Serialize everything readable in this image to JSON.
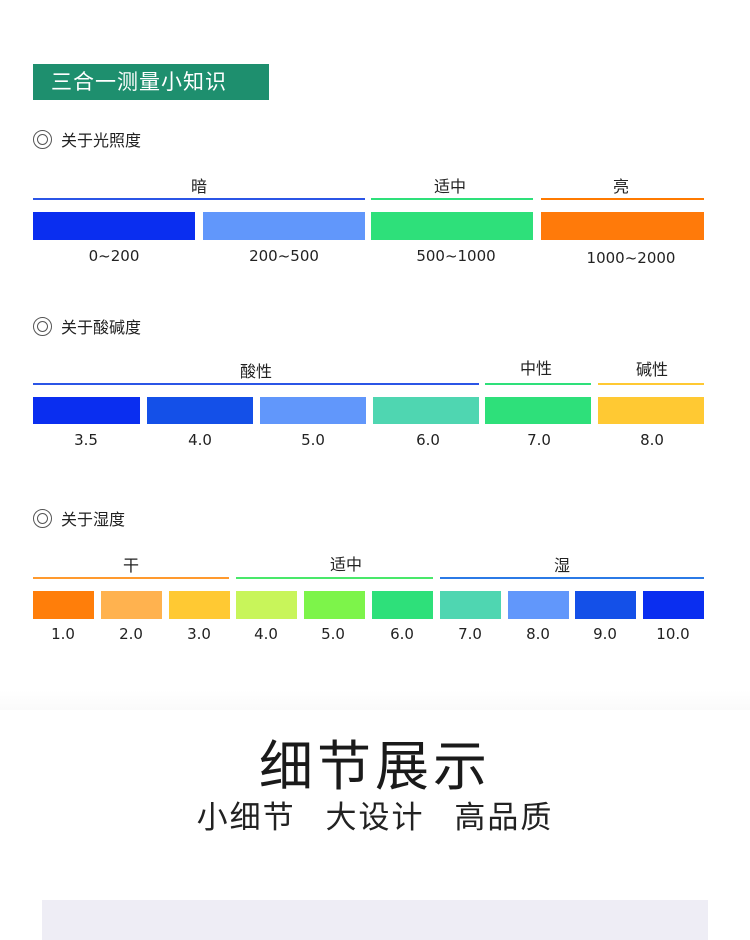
{
  "banner": {
    "title": "三合一测量小知识"
  },
  "light": {
    "heading": "关于光照度",
    "categories": [
      {
        "label": "暗",
        "color": "#2b55e6"
      },
      {
        "label": "适中",
        "color": "#2ee07a"
      },
      {
        "label": "亮",
        "color": "#ff7a00"
      }
    ],
    "blocks": [
      {
        "color": "#0a2ef0",
        "value": "0~200"
      },
      {
        "color": "#6197fb",
        "value": "200~500"
      },
      {
        "color": "#2ee07a",
        "value": "500~1000"
      },
      {
        "color": "#ff7a0a",
        "value": "1000~2000"
      }
    ]
  },
  "ph": {
    "heading": "关于酸碱度",
    "categories": [
      {
        "label": "酸性",
        "color": "#2b55e6"
      },
      {
        "label": "中性",
        "color": "#2ee07a"
      },
      {
        "label": "碱性",
        "color": "#ffc933"
      }
    ],
    "blocks": [
      {
        "color": "#0a2ef0",
        "value": "3.5"
      },
      {
        "color": "#1450e8",
        "value": "4.0"
      },
      {
        "color": "#6197fb",
        "value": "5.0"
      },
      {
        "color": "#4fd6b1",
        "value": "6.0"
      },
      {
        "color": "#2ee07a",
        "value": "7.0"
      },
      {
        "color": "#ffc933",
        "value": "8.0"
      }
    ]
  },
  "humidity": {
    "heading": "关于湿度",
    "categories": [
      {
        "label": "干",
        "color": "#ff9a2e"
      },
      {
        "label": "适中",
        "color": "#49e86a"
      },
      {
        "label": "湿",
        "color": "#2b7ae6"
      }
    ],
    "blocks": [
      {
        "color": "#ff7e0a",
        "value": "1.0"
      },
      {
        "color": "#ffb24f",
        "value": "2.0"
      },
      {
        "color": "#ffc933",
        "value": "3.0"
      },
      {
        "color": "#c8f55a",
        "value": "4.0"
      },
      {
        "color": "#7df44a",
        "value": "5.0"
      },
      {
        "color": "#2ee07a",
        "value": "6.0"
      },
      {
        "color": "#4fd6b1",
        "value": "7.0"
      },
      {
        "color": "#6197fb",
        "value": "8.0"
      },
      {
        "color": "#1450e8",
        "value": "9.0"
      },
      {
        "color": "#0a2ef0",
        "value": "10.0"
      }
    ]
  },
  "detail": {
    "title": "细节展示",
    "subtitle": "小细节 大设计 高品质"
  }
}
